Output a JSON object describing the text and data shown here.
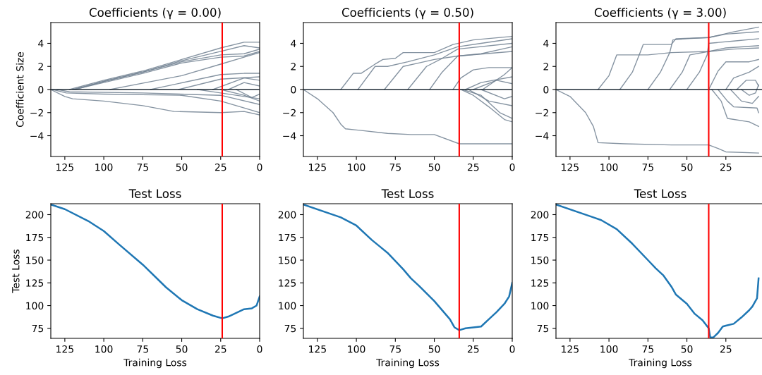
{
  "chart_data": [
    {
      "type": "line",
      "title": "Coefficients (γ = 0.00)",
      "ylabel": "Coefficient Size",
      "xlim": [
        134,
        0
      ],
      "xticks": [
        125,
        100,
        75,
        50,
        25,
        0
      ],
      "ylim": [
        -5.8,
        5.8
      ],
      "yticks": [
        -4,
        -2,
        0,
        2,
        4
      ],
      "grid": false,
      "ref_lines": [
        {
          "axis": "y",
          "value": 0,
          "color": "#1c2833"
        },
        {
          "axis": "x",
          "value": 24,
          "color": "#ff0000"
        }
      ],
      "series": [
        {
          "color": "#708090",
          "x": [
            122,
            100,
            75,
            50,
            25,
            10,
            0
          ],
          "values": [
            0,
            0.8,
            1.6,
            2.6,
            3.6,
            4.1,
            4.1
          ]
        },
        {
          "color": "#708090",
          "x": [
            120,
            100,
            75,
            50,
            25,
            10,
            0
          ],
          "values": [
            0,
            0.7,
            1.5,
            2.5,
            3.3,
            3.8,
            3.6
          ]
        },
        {
          "color": "#708090",
          "x": [
            118,
            100,
            75,
            50,
            25,
            10,
            0
          ],
          "values": [
            0,
            0.7,
            1.5,
            2.4,
            3.0,
            3.1,
            3.5
          ]
        },
        {
          "color": "#708090",
          "x": [
            119,
            100,
            75,
            50,
            25,
            10,
            0
          ],
          "values": [
            0,
            0.6,
            1.4,
            2.3,
            2.8,
            2.9,
            3.3
          ]
        },
        {
          "color": "#708090",
          "x": [
            96,
            50,
            25,
            10,
            0
          ],
          "values": [
            0,
            1.2,
            2.2,
            2.8,
            3.2
          ]
        },
        {
          "color": "#708090",
          "x": [
            70,
            25,
            10,
            0
          ],
          "values": [
            0,
            1.3,
            1.4,
            1.4
          ]
        },
        {
          "color": "#708090",
          "x": [
            52,
            25,
            0
          ],
          "values": [
            0,
            0.9,
            1.1
          ]
        },
        {
          "color": "#708090",
          "x": [
            30,
            10,
            0
          ],
          "values": [
            0,
            1.0,
            0.8
          ]
        },
        {
          "color": "#708090",
          "x": [
            134,
            125,
            120,
            100,
            75,
            55,
            25,
            10,
            0
          ],
          "values": [
            0,
            -0.6,
            -0.8,
            -1.0,
            -1.4,
            -1.9,
            -2.0,
            -1.9,
            -2.2
          ]
        },
        {
          "color": "#708090",
          "x": [
            133,
            124,
            100,
            50,
            25,
            10,
            0
          ],
          "values": [
            0,
            -0.3,
            -0.4,
            -0.5,
            -1.0,
            -1.6,
            -2.0
          ]
        },
        {
          "color": "#708090",
          "x": [
            130,
            122,
            75,
            25,
            0
          ],
          "values": [
            0,
            -0.2,
            -0.3,
            -0.5,
            -1.3
          ]
        },
        {
          "color": "#708090",
          "x": [
            40,
            25,
            0
          ],
          "values": [
            0,
            -0.3,
            -0.8
          ]
        },
        {
          "color": "#708090",
          "x": [
            25,
            10,
            0
          ],
          "values": [
            0,
            -0.5,
            -1.0
          ]
        },
        {
          "color": "#708090",
          "x": [
            20,
            10,
            0
          ],
          "values": [
            0,
            0.6,
            0.3
          ]
        },
        {
          "color": "#708090",
          "x": [
            15,
            5,
            0
          ],
          "values": [
            0,
            -0.7,
            -0.4
          ]
        }
      ]
    },
    {
      "type": "line",
      "title": "Coefficients (γ = 0.50)",
      "xlim": [
        134,
        0
      ],
      "xticks": [
        125,
        100,
        75,
        50,
        25,
        0
      ],
      "ylim": [
        -5.8,
        5.8
      ],
      "yticks": [
        -4,
        -2,
        0,
        2,
        4
      ],
      "grid": false,
      "ref_lines": [
        {
          "axis": "y",
          "value": 0,
          "color": "#1c2833"
        },
        {
          "axis": "x",
          "value": 34,
          "color": "#ff0000"
        }
      ],
      "series": [
        {
          "color": "#708090",
          "x": [
            134,
            125,
            115,
            110,
            107,
            100,
            80,
            65,
            50,
            34,
            0
          ],
          "values": [
            0,
            -0.8,
            -2.0,
            -3.0,
            -3.4,
            -3.5,
            -3.8,
            -3.9,
            -3.9,
            -4.7,
            -4.7
          ]
        },
        {
          "color": "#708090",
          "x": [
            110,
            102,
            97,
            88,
            83,
            75,
            70,
            50,
            38,
            25,
            0
          ],
          "values": [
            0,
            1.4,
            1.4,
            2.2,
            2.6,
            2.7,
            3.2,
            3.2,
            3.9,
            4.3,
            4.6
          ]
        },
        {
          "color": "#708090",
          "x": [
            99,
            88,
            80,
            67,
            50,
            35,
            20,
            0
          ],
          "values": [
            0,
            2.0,
            2.0,
            2.4,
            3.0,
            3.7,
            4.0,
            4.4
          ]
        },
        {
          "color": "#708090",
          "x": [
            82,
            70,
            60,
            50,
            35,
            0
          ],
          "values": [
            0,
            2.0,
            2.3,
            2.6,
            2.9,
            3.3
          ]
        },
        {
          "color": "#708090",
          "x": [
            67,
            55,
            45,
            35,
            0
          ],
          "values": [
            0,
            2.0,
            2.7,
            3.5,
            4.0
          ]
        },
        {
          "color": "#708090",
          "x": [
            53,
            45,
            35,
            20,
            0
          ],
          "values": [
            0,
            1.5,
            2.9,
            3.1,
            3.7
          ]
        },
        {
          "color": "#708090",
          "x": [
            38,
            33,
            25,
            15,
            0
          ],
          "values": [
            0,
            1.0,
            1.7,
            1.9,
            1.9
          ]
        },
        {
          "color": "#708090",
          "x": [
            33,
            25,
            15,
            5,
            0
          ],
          "values": [
            0,
            -0.5,
            -1.5,
            -2.6,
            -2.8
          ]
        },
        {
          "color": "#708090",
          "x": [
            32,
            20,
            8,
            0
          ],
          "values": [
            0,
            -0.5,
            -2.0,
            -2.5
          ]
        },
        {
          "color": "#708090",
          "x": [
            30,
            20,
            0
          ],
          "values": [
            0,
            0.6,
            1.1
          ]
        },
        {
          "color": "#708090",
          "x": [
            28,
            15,
            0
          ],
          "values": [
            0,
            -1.0,
            -1.4
          ]
        },
        {
          "color": "#708090",
          "x": [
            25,
            10,
            0
          ],
          "values": [
            0,
            0.8,
            0.5
          ]
        },
        {
          "color": "#708090",
          "x": [
            20,
            5,
            0
          ],
          "values": [
            0,
            -0.8,
            -0.6
          ]
        },
        {
          "color": "#708090",
          "x": [
            19,
            5,
            0
          ],
          "values": [
            0,
            1.3,
            1.9
          ]
        }
      ]
    },
    {
      "type": "line",
      "title": "Coefficients (γ = 3.00)",
      "xlim": [
        134,
        0
      ],
      "xticks": [
        125,
        100,
        75,
        50,
        25
      ],
      "ylim": [
        -5.8,
        5.8
      ],
      "yticks": [
        -4,
        -2,
        0,
        2,
        4
      ],
      "grid": false,
      "ref_lines": [
        {
          "axis": "y",
          "value": 0,
          "color": "#1c2833"
        },
        {
          "axis": "x",
          "value": 36,
          "color": "#ff0000"
        }
      ],
      "series": [
        {
          "color": "#708090",
          "x": [
            134,
            125,
            115,
            110,
            107,
            90,
            60,
            36,
            30,
            25,
            4
          ],
          "values": [
            0,
            -0.6,
            -2.0,
            -3.2,
            -4.6,
            -4.7,
            -4.8,
            -4.8,
            -5.1,
            -5.4,
            -5.5
          ]
        },
        {
          "color": "#708090",
          "x": [
            107,
            100,
            95,
            75,
            60,
            36,
            20,
            4
          ],
          "values": [
            0,
            1.2,
            3.0,
            3.0,
            3.2,
            3.3,
            3.5,
            3.6
          ]
        },
        {
          "color": "#708090",
          "x": [
            93,
            85,
            80,
            78,
            60,
            57,
            36,
            25,
            4
          ],
          "values": [
            0,
            1.5,
            3.2,
            3.9,
            3.9,
            4.4,
            4.5,
            4.8,
            5.0
          ]
        },
        {
          "color": "#708090",
          "x": [
            75,
            67,
            61,
            59,
            50,
            36,
            20,
            4
          ],
          "values": [
            0,
            1.5,
            3.2,
            4.3,
            4.4,
            4.5,
            5.0,
            5.4
          ]
        },
        {
          "color": "#708090",
          "x": [
            61,
            53,
            48,
            36,
            25,
            4
          ],
          "values": [
            0,
            1.5,
            3.0,
            3.3,
            3.6,
            3.8
          ]
        },
        {
          "color": "#708090",
          "x": [
            50,
            42,
            37,
            36,
            20,
            4
          ],
          "values": [
            0,
            1.5,
            3.0,
            4.0,
            4.2,
            4.4
          ]
        },
        {
          "color": "#708090",
          "x": [
            36,
            30,
            25,
            10,
            4
          ],
          "values": [
            0,
            1.6,
            2.4,
            2.4,
            2.6
          ]
        },
        {
          "color": "#708090",
          "x": [
            34,
            28,
            24,
            10,
            4
          ],
          "values": [
            0,
            -1.0,
            -2.5,
            -2.8,
            -3.2
          ]
        },
        {
          "color": "#708090",
          "x": [
            30,
            24,
            20,
            5,
            4
          ],
          "values": [
            0,
            -1.0,
            -1.5,
            -1.6,
            -2.0
          ]
        },
        {
          "color": "#708090",
          "x": [
            25,
            20,
            10,
            4
          ],
          "values": [
            0,
            1.0,
            1.5,
            2.0
          ]
        },
        {
          "color": "#708090",
          "x": [
            22,
            15,
            8,
            4
          ],
          "values": [
            0,
            -1.0,
            -1.2,
            -0.6
          ]
        },
        {
          "color": "#708090",
          "x": [
            18,
            12,
            6,
            4
          ],
          "values": [
            0,
            0.8,
            0.8,
            0.3
          ]
        },
        {
          "color": "#708090",
          "x": [
            15,
            10,
            6,
            4
          ],
          "values": [
            0,
            -0.5,
            -0.3,
            0.4
          ]
        }
      ]
    },
    {
      "type": "line",
      "title": "Test Loss",
      "xlabel": "Training Loss",
      "ylabel": "Test Loss",
      "xlim": [
        134,
        0
      ],
      "xticks": [
        125,
        100,
        75,
        50,
        25,
        0
      ],
      "ylim": [
        64,
        212
      ],
      "yticks": [
        75,
        100,
        125,
        150,
        175,
        200
      ],
      "grid": false,
      "ref_lines": [
        {
          "axis": "x",
          "value": 24,
          "color": "#ff0000"
        }
      ],
      "series": [
        {
          "color": "#1f77b4",
          "x": [
            134,
            125,
            110,
            100,
            90,
            75,
            60,
            50,
            40,
            30,
            24,
            20,
            15,
            10,
            5,
            2,
            0
          ],
          "values": [
            211,
            206,
            193,
            182,
            167,
            145,
            120,
            106,
            96,
            89,
            86,
            88,
            92,
            96,
            97,
            100,
            110
          ]
        }
      ]
    },
    {
      "type": "line",
      "title": "Test Loss",
      "xlabel": "Training Loss",
      "xlim": [
        134,
        0
      ],
      "xticks": [
        125,
        100,
        75,
        50,
        25,
        0
      ],
      "ylim": [
        64,
        212
      ],
      "yticks": [
        75,
        100,
        125,
        150,
        175,
        200
      ],
      "grid": false,
      "ref_lines": [
        {
          "axis": "x",
          "value": 34,
          "color": "#ff0000"
        }
      ],
      "series": [
        {
          "color": "#1f77b4",
          "x": [
            134,
            110,
            100,
            90,
            85,
            80,
            70,
            65,
            60,
            50,
            40,
            37,
            34,
            30,
            25,
            20,
            15,
            10,
            5,
            2,
            0
          ],
          "values": [
            211,
            197,
            188,
            172,
            165,
            158,
            140,
            130,
            122,
            105,
            85,
            76,
            73,
            75,
            76,
            77,
            85,
            93,
            102,
            110,
            125
          ]
        }
      ]
    },
    {
      "type": "line",
      "title": "Test Loss",
      "xlabel": "Training Loss",
      "xlim": [
        134,
        0
      ],
      "xticks": [
        125,
        100,
        75,
        50,
        25
      ],
      "ylim": [
        64,
        212
      ],
      "yticks": [
        75,
        100,
        125,
        150,
        175,
        200
      ],
      "grid": false,
      "ref_lines": [
        {
          "axis": "x",
          "value": 36,
          "color": "#ff0000"
        }
      ],
      "series": [
        {
          "color": "#1f77b4",
          "x": [
            134,
            110,
            105,
            95,
            85,
            75,
            70,
            65,
            60,
            57,
            50,
            45,
            40,
            36,
            35,
            33,
            30,
            27,
            25,
            20,
            15,
            10,
            8,
            5,
            4
          ],
          "values": [
            211,
            197,
            194,
            184,
            168,
            150,
            141,
            133,
            121,
            112,
            102,
            91,
            84,
            75,
            65,
            65,
            70,
            77,
            78,
            80,
            87,
            95,
            99,
            108,
            130
          ]
        }
      ]
    }
  ]
}
